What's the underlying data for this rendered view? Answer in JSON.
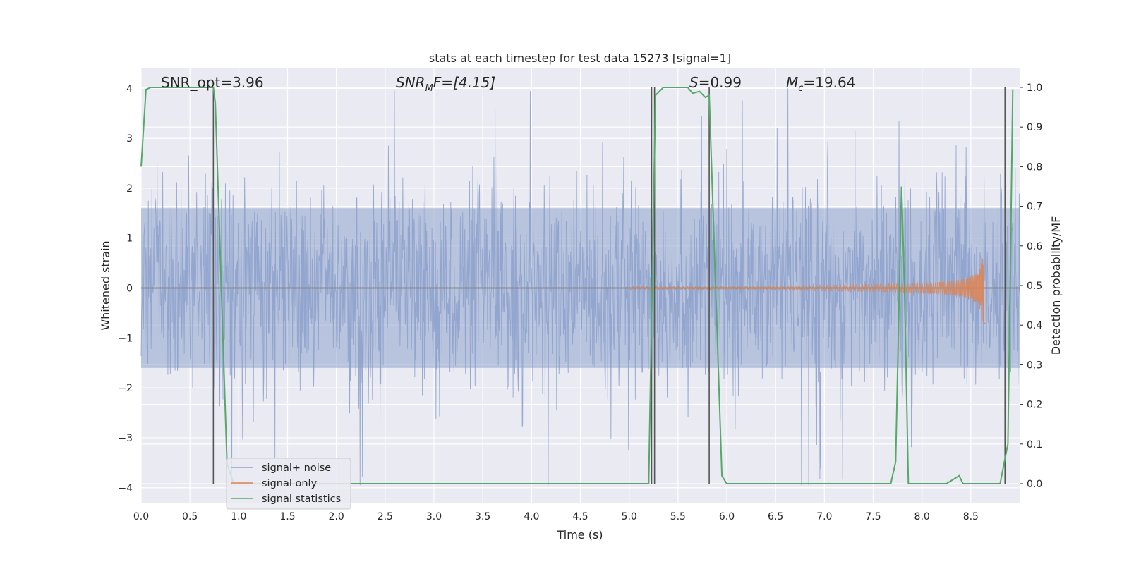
{
  "chart_data": {
    "type": "line",
    "title": "stats at each timestep for test data 15273 [signal=1]",
    "xlabel": "Time (s)",
    "ylabel_left": "Whitened strain",
    "ylabel_right": "Detection probability/MF",
    "xlim": [
      0.0,
      9.0
    ],
    "ylim_left": [
      -4.3,
      4.4
    ],
    "ylim_right": [
      -0.048,
      1.048
    ],
    "x_ticks": [
      "0.0",
      "0.5",
      "1.0",
      "1.5",
      "2.0",
      "2.5",
      "3.0",
      "3.5",
      "4.0",
      "4.5",
      "5.0",
      "5.5",
      "6.0",
      "6.5",
      "7.0",
      "7.5",
      "8.0",
      "8.5"
    ],
    "y_left_ticks": [
      "4",
      "3",
      "2",
      "1",
      "0",
      "−1",
      "−2",
      "−3",
      "−4"
    ],
    "y_right_ticks": [
      "1.0",
      "0.9",
      "0.8",
      "0.7",
      "0.6",
      "0.5",
      "0.4",
      "0.3",
      "0.2",
      "0.1",
      "0.0"
    ],
    "grid": true,
    "legend_position": "lower-left",
    "annotations": {
      "snr_opt": "SNR_opt=3.96",
      "snr_mf_base": "SNR",
      "snr_mf_sub": "M",
      "snr_mf_rest": "F=[4.15]",
      "s_label": "S",
      "s_value": "=0.99",
      "mc_label": "M",
      "mc_sub": "c",
      "mc_value": "=19.64"
    },
    "series": [
      {
        "name": "signal+ noise",
        "color": "#8ea2cc",
        "description_kind": "noise",
        "typical_abs_amplitude": 1.6,
        "peak_values": [
          3.4,
          3.0,
          3.7,
          3.3,
          2.9,
          3.6,
          3.1,
          3.5,
          3.2,
          3.8
        ]
      },
      {
        "name": "signal only",
        "color": "#dd8452",
        "kind": "chirp",
        "onset_time": 5.0,
        "end_time": 8.65,
        "peak_amplitude": 0.8
      },
      {
        "name": "signal statistics",
        "color": "#55a868",
        "axis": "right",
        "x": [
          0.0,
          0.05,
          0.1,
          0.74,
          0.76,
          0.88,
          0.95,
          5.2,
          5.27,
          5.35,
          5.6,
          5.65,
          5.72,
          5.78,
          5.82,
          5.95,
          6.0,
          7.68,
          7.73,
          7.79,
          7.82,
          7.86,
          7.9,
          8.25,
          8.38,
          8.42,
          8.8,
          8.88,
          8.93
        ],
        "y": [
          0.8,
          0.995,
          1.0,
          1.0,
          0.96,
          0.05,
          0.0,
          0.0,
          0.98,
          1.0,
          1.0,
          0.985,
          0.99,
          0.975,
          0.98,
          0.02,
          0.0,
          0.0,
          0.055,
          0.75,
          0.5,
          0.0,
          0.0,
          0.0,
          0.02,
          0.0,
          0.0,
          0.1,
          0.995
        ]
      }
    ],
    "vertical_lines_x": [
      0.74,
      5.23,
      5.26,
      5.82,
      8.85
    ],
    "colors": {
      "plot_background": "#eaeaf2",
      "grid": "#ffffff",
      "vertical_line": "#555555",
      "zero_line": "#888888"
    }
  }
}
